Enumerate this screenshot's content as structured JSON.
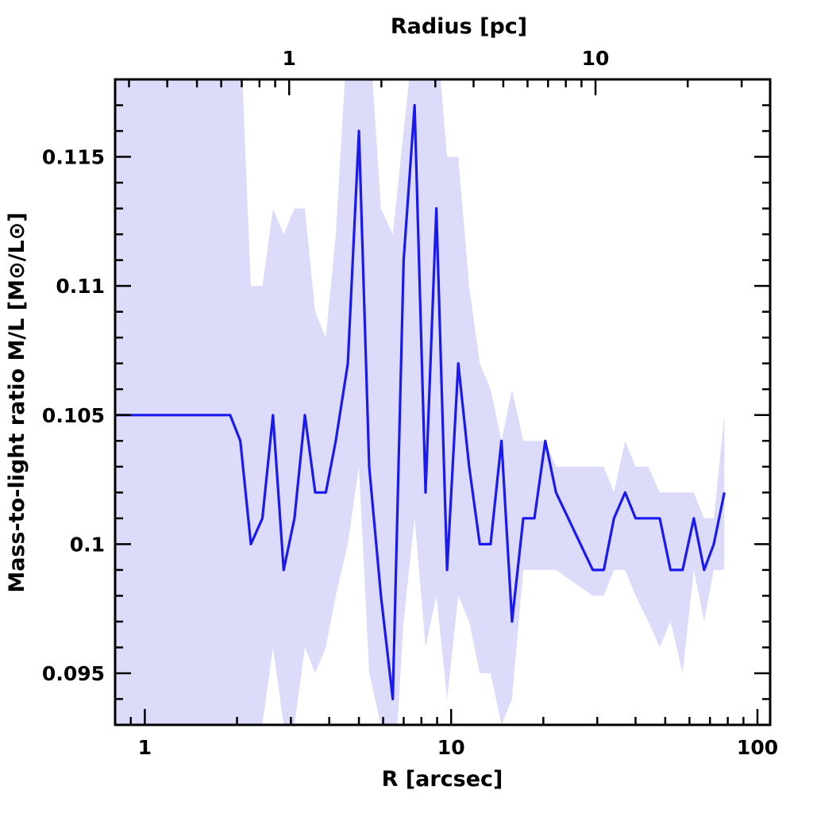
{
  "chart_data": {
    "type": "line",
    "xlabel": "R [arcsec]",
    "x2label": "Radius [pc]",
    "ylabel": "Mass-to-light ratio M/L [M⊙/L⊙]",
    "xscale": "log",
    "x2scale": "log",
    "xlim": [
      0.8,
      110
    ],
    "ylim": [
      0.093,
      0.118
    ],
    "x_ticks": [
      "1",
      "10",
      "100"
    ],
    "x2_ticks": [
      "1",
      "10"
    ],
    "y_ticks": [
      "0.095",
      "0.1",
      "0.105",
      "0.11",
      "0.115"
    ],
    "colors": {
      "line": "#1a1af0",
      "band": "#dcdcfa"
    },
    "series": [
      {
        "x": [
          0.8,
          1.9,
          2.05,
          2.22,
          2.42,
          2.62,
          2.84,
          3.08,
          3.33,
          3.6,
          3.9,
          4.2,
          4.6,
          5.0,
          5.4,
          5.9,
          6.45,
          7.0,
          7.6,
          8.25,
          8.95,
          9.7,
          10.55,
          11.45,
          12.4,
          13.45,
          14.6,
          15.8,
          17.2,
          18.7,
          20.3,
          22.0,
          29.0,
          31.5,
          34.0,
          37.0,
          40.0,
          44.0,
          48.0,
          52.0,
          57.0,
          62.0,
          67.0,
          72.0,
          78.0
        ],
        "y": [
          0.105,
          0.105,
          0.104,
          0.1,
          0.101,
          0.105,
          0.099,
          0.101,
          0.105,
          0.102,
          0.102,
          0.104,
          0.107,
          0.116,
          0.103,
          0.098,
          0.094,
          0.111,
          0.117,
          0.102,
          0.113,
          0.099,
          0.107,
          0.103,
          0.1,
          0.1,
          0.104,
          0.097,
          0.101,
          0.101,
          0.104,
          0.102,
          0.099,
          0.099,
          0.101,
          0.102,
          0.101,
          0.101,
          0.101,
          0.099,
          0.099,
          0.101,
          0.099,
          0.1,
          0.102
        ],
        "y_upper": [
          0.125,
          0.125,
          0.12,
          0.11,
          0.11,
          0.113,
          0.112,
          0.113,
          0.113,
          0.109,
          0.108,
          0.112,
          0.12,
          0.124,
          0.12,
          0.113,
          0.112,
          0.116,
          0.12,
          0.12,
          0.12,
          0.115,
          0.115,
          0.11,
          0.107,
          0.106,
          0.104,
          0.106,
          0.104,
          0.104,
          0.104,
          0.103,
          0.103,
          0.103,
          0.102,
          0.104,
          0.103,
          0.103,
          0.102,
          0.102,
          0.102,
          0.102,
          0.101,
          0.101,
          0.105
        ],
        "y_lower": [
          0.093,
          0.093,
          0.093,
          0.093,
          0.093,
          0.096,
          0.093,
          0.093,
          0.096,
          0.095,
          0.096,
          0.098,
          0.1,
          0.103,
          0.095,
          0.093,
          0.09,
          0.097,
          0.101,
          0.096,
          0.098,
          0.094,
          0.098,
          0.097,
          0.095,
          0.095,
          0.093,
          0.094,
          0.099,
          0.099,
          0.099,
          0.099,
          0.098,
          0.098,
          0.099,
          0.099,
          0.098,
          0.097,
          0.096,
          0.097,
          0.095,
          0.099,
          0.097,
          0.099,
          0.099
        ]
      }
    ]
  }
}
